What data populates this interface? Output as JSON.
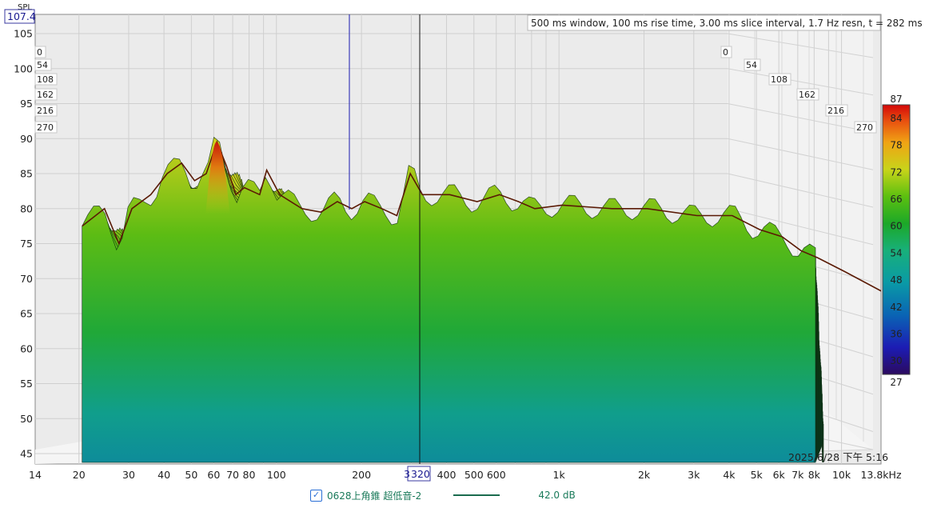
{
  "chart_data": {
    "type": "waterfall",
    "header_text": "500 ms window, 100 ms rise time, 3.00 ms slice interval, 1.7 Hz resn, t = 282 ms",
    "y_axis_label": "SPL",
    "y_cursor_readout": "107.4",
    "y_range": [
      44,
      107
    ],
    "y_ticks": [
      "105",
      "100",
      "95",
      "90",
      "85",
      "80",
      "75",
      "70",
      "65",
      "60",
      "55",
      "50",
      "45"
    ],
    "x_range_hz": [
      14,
      13800
    ],
    "x_scale": "log",
    "x_ticks": [
      {
        "hz": 14,
        "label": "14"
      },
      {
        "hz": 20,
        "label": "20"
      },
      {
        "hz": 30,
        "label": "30"
      },
      {
        "hz": 40,
        "label": "40"
      },
      {
        "hz": 50,
        "label": "50"
      },
      {
        "hz": 60,
        "label": "60"
      },
      {
        "hz": 70,
        "label": "70"
      },
      {
        "hz": 80,
        "label": "80"
      },
      {
        "hz": 100,
        "label": "100"
      },
      {
        "hz": 200,
        "label": "200"
      },
      {
        "hz": 400,
        "label": "400"
      },
      {
        "hz": 500,
        "label": "500"
      },
      {
        "hz": 600,
        "label": "600"
      },
      {
        "hz": 1000,
        "label": "1k"
      },
      {
        "hz": 2000,
        "label": "2k"
      },
      {
        "hz": 3000,
        "label": "3k"
      },
      {
        "hz": 4000,
        "label": "4k"
      },
      {
        "hz": 5000,
        "label": "5k"
      },
      {
        "hz": 6000,
        "label": "6k"
      },
      {
        "hz": 7000,
        "label": "7k"
      },
      {
        "hz": 8000,
        "label": "8k"
      },
      {
        "hz": 10000,
        "label": "10k"
      },
      {
        "hz": 13800,
        "label": "13.8kHz"
      }
    ],
    "x_cursor_readout": "320",
    "x_cursor_partial": "3",
    "time_axis_ms": [
      "0",
      "54",
      "108",
      "162",
      "216",
      "270"
    ],
    "colorbar": {
      "min": 27,
      "max": 87,
      "labels": [
        "87",
        "84",
        "78",
        "72",
        "66",
        "60",
        "54",
        "48",
        "42",
        "36",
        "30",
        "27"
      ]
    },
    "timestamp": "2025/6/28 下午 5:16",
    "front_response": [
      {
        "hz": 20,
        "db": 77.5
      },
      {
        "hz": 24,
        "db": 80
      },
      {
        "hz": 27,
        "db": 75
      },
      {
        "hz": 30,
        "db": 80
      },
      {
        "hz": 35,
        "db": 82
      },
      {
        "hz": 40,
        "db": 85
      },
      {
        "hz": 45,
        "db": 86.5
      },
      {
        "hz": 50,
        "db": 84
      },
      {
        "hz": 55,
        "db": 85
      },
      {
        "hz": 60,
        "db": 89.5
      },
      {
        "hz": 65,
        "db": 86
      },
      {
        "hz": 70,
        "db": 82
      },
      {
        "hz": 75,
        "db": 83
      },
      {
        "hz": 85,
        "db": 82
      },
      {
        "hz": 90,
        "db": 85.5
      },
      {
        "hz": 100,
        "db": 82
      },
      {
        "hz": 120,
        "db": 80
      },
      {
        "hz": 140,
        "db": 79.5
      },
      {
        "hz": 160,
        "db": 81
      },
      {
        "hz": 180,
        "db": 80
      },
      {
        "hz": 200,
        "db": 81
      },
      {
        "hz": 230,
        "db": 80
      },
      {
        "hz": 260,
        "db": 79
      },
      {
        "hz": 290,
        "db": 85
      },
      {
        "hz": 320,
        "db": 82
      },
      {
        "hz": 400,
        "db": 82
      },
      {
        "hz": 500,
        "db": 81
      },
      {
        "hz": 600,
        "db": 82
      },
      {
        "hz": 700,
        "db": 81
      },
      {
        "hz": 800,
        "db": 80
      },
      {
        "hz": 1000,
        "db": 80.5
      },
      {
        "hz": 1500,
        "db": 80
      },
      {
        "hz": 2000,
        "db": 80
      },
      {
        "hz": 3000,
        "db": 79
      },
      {
        "hz": 4000,
        "db": 79
      },
      {
        "hz": 5000,
        "db": 77
      },
      {
        "hz": 6000,
        "db": 76
      },
      {
        "hz": 7000,
        "db": 74
      },
      {
        "hz": 8000,
        "db": 73
      },
      {
        "hz": 10000,
        "db": 71
      },
      {
        "hz": 13800,
        "db": 68
      }
    ],
    "legend": {
      "checked": true,
      "name": "0628上角錐 超低音-2",
      "value": "42.0 dB",
      "color": "#1a6b4e"
    },
    "colors": {
      "cursor_blue": "#1a1ab0",
      "cursor_black": "#111111",
      "background": "#e9e9e9",
      "colormap": [
        "#3a0a6a",
        "#2020b0",
        "#1070b0",
        "#10a0a0",
        "#20b060",
        "#20a020",
        "#60c010",
        "#d8d820",
        "#f0a010",
        "#e04010",
        "#c00000"
      ]
    }
  }
}
